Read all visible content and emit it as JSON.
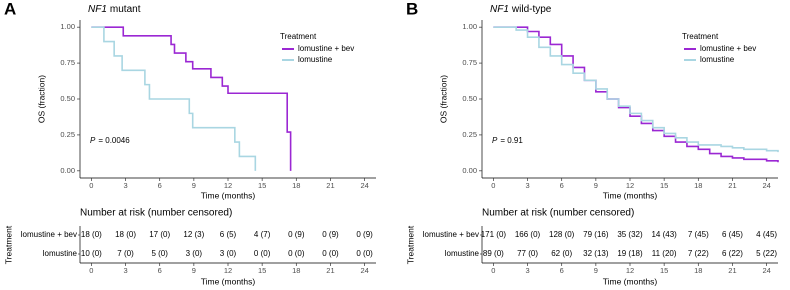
{
  "chart_data": [
    {
      "type": "step",
      "panel_label": "A",
      "title_italic": "NF1",
      "title": "mutant",
      "xlabel": "Time (months)",
      "ylabel": "OS (fraction)",
      "p_label": "P",
      "p_value": "= 0.0046",
      "legend_title": "Treatment",
      "xlim": [
        -1,
        25
      ],
      "ylim": [
        -0.05,
        1.05
      ],
      "xticks": [
        0,
        3,
        6,
        9,
        12,
        15,
        18,
        21,
        24
      ],
      "yticks": [
        {
          "value": 0,
          "label": "0.00"
        },
        {
          "value": 0.25,
          "label": "0.25"
        },
        {
          "value": 0.5,
          "label": "0.50"
        },
        {
          "value": 0.75,
          "label": "0.75"
        },
        {
          "value": 1,
          "label": "1.00"
        }
      ],
      "series": [
        {
          "name": "lomustine + bev",
          "color": "#9b27d3",
          "x": [
            0,
            2.8,
            7,
            7.3,
            8.3,
            8.9,
            10.5,
            11.5,
            12,
            17.2,
            17.5
          ],
          "values": [
            1,
            0.94,
            0.88,
            0.82,
            0.76,
            0.71,
            0.65,
            0.59,
            0.54,
            0.27,
            0
          ]
        },
        {
          "name": "lomustine",
          "color": "#a9d6e2",
          "x": [
            0,
            1.1,
            2,
            2.7,
            4.7,
            5.1,
            8.6,
            8.9,
            12.6,
            13,
            14.4
          ],
          "values": [
            1,
            0.9,
            0.8,
            0.7,
            0.6,
            0.5,
            0.4,
            0.3,
            0.2,
            0.1,
            0
          ]
        }
      ],
      "risk_table": {
        "title": "Number at risk (number censored)",
        "ylabel": "Treatment",
        "xlabel": "Time (months)",
        "rows": [
          [
            "18 (0)",
            "18 (0)",
            "17 (0)",
            "12 (3)",
            "6 (5)",
            "4 (7)",
            "0 (9)",
            "0 (9)",
            "0 (9)"
          ],
          [
            "10 (0)",
            "7 (0)",
            "5 (0)",
            "3 (0)",
            "3 (0)",
            "0 (0)",
            "0 (0)",
            "0 (0)",
            "0 (0)"
          ]
        ]
      }
    },
    {
      "type": "step",
      "panel_label": "B",
      "title_italic": "NF1",
      "title": "wild-type",
      "xlabel": "Time (months)",
      "ylabel": "OS (fraction)",
      "p_label": "P",
      "p_value": "= 0.91",
      "legend_title": "Treatment",
      "xlim": [
        -1,
        25
      ],
      "ylim": [
        -0.05,
        1.05
      ],
      "xticks": [
        0,
        3,
        6,
        9,
        12,
        15,
        18,
        21,
        24
      ],
      "yticks": [
        {
          "value": 0,
          "label": "0.00"
        },
        {
          "value": 0.25,
          "label": "0.25"
        },
        {
          "value": 0.5,
          "label": "0.50"
        },
        {
          "value": 0.75,
          "label": "0.75"
        },
        {
          "value": 1,
          "label": "1.00"
        }
      ],
      "series": [
        {
          "name": "lomustine + bev",
          "color": "#9b27d3",
          "x": [
            0,
            2,
            3,
            4,
            5,
            6,
            7,
            8,
            9,
            10,
            11,
            12,
            13,
            14,
            15,
            16,
            17,
            18,
            19,
            20,
            21,
            22,
            24,
            25
          ],
          "values": [
            1,
            1,
            0.97,
            0.93,
            0.88,
            0.8,
            0.72,
            0.63,
            0.55,
            0.5,
            0.44,
            0.38,
            0.33,
            0.28,
            0.24,
            0.2,
            0.17,
            0.15,
            0.12,
            0.1,
            0.09,
            0.08,
            0.07,
            0.06
          ]
        },
        {
          "name": "lomustine",
          "color": "#a9d6e2",
          "x": [
            0,
            2,
            3,
            4,
            5,
            6,
            7,
            8,
            9,
            10,
            11,
            12,
            13,
            14,
            15,
            16,
            17,
            18,
            20,
            21,
            22,
            24,
            25
          ],
          "values": [
            1,
            0.98,
            0.93,
            0.86,
            0.8,
            0.74,
            0.68,
            0.63,
            0.57,
            0.5,
            0.45,
            0.4,
            0.35,
            0.3,
            0.26,
            0.23,
            0.2,
            0.18,
            0.17,
            0.16,
            0.15,
            0.14,
            0.13
          ]
        }
      ],
      "risk_table": {
        "title": "Number at risk (number censored)",
        "ylabel": "Treatment",
        "xlabel": "Time (months)",
        "rows": [
          [
            "171 (0)",
            "166 (0)",
            "128 (0)",
            "79 (16)",
            "35 (32)",
            "14 (43)",
            "7 (45)",
            "6 (45)",
            "4 (45)"
          ],
          [
            "89 (0)",
            "77 (0)",
            "62 (0)",
            "32 (13)",
            "19 (18)",
            "11 (20)",
            "7 (22)",
            "6 (22)",
            "5 (22)"
          ]
        ]
      }
    }
  ]
}
